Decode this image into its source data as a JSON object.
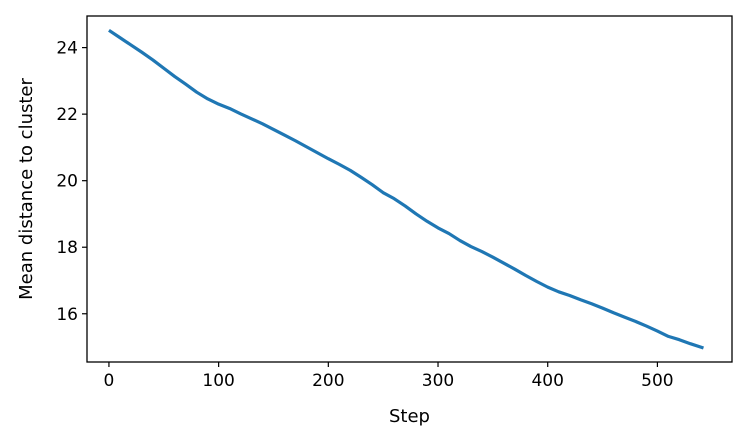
{
  "chart_data": {
    "type": "line",
    "title": "",
    "xlabel": "Step",
    "ylabel": "Mean distance to cluster",
    "xlim": [
      -20,
      568
    ],
    "ylim": [
      14.55,
      24.95
    ],
    "grid": false,
    "legend": "none",
    "x_ticks": [
      0,
      100,
      200,
      300,
      400,
      500
    ],
    "y_ticks": [
      16,
      18,
      20,
      22,
      24
    ],
    "series": [
      {
        "color": "#1f77b4",
        "x": [
          0,
          10,
          20,
          30,
          40,
          50,
          60,
          70,
          80,
          90,
          100,
          110,
          120,
          130,
          140,
          150,
          160,
          170,
          180,
          190,
          200,
          210,
          220,
          230,
          240,
          250,
          260,
          270,
          280,
          290,
          300,
          310,
          320,
          330,
          340,
          350,
          360,
          370,
          380,
          390,
          400,
          410,
          420,
          430,
          440,
          450,
          460,
          470,
          480,
          490,
          500,
          510,
          520,
          530,
          542
        ],
        "y": [
          24.52,
          24.3,
          24.08,
          23.86,
          23.63,
          23.38,
          23.13,
          22.9,
          22.66,
          22.46,
          22.3,
          22.17,
          22.01,
          21.86,
          21.71,
          21.54,
          21.37,
          21.2,
          21.02,
          20.84,
          20.66,
          20.49,
          20.31,
          20.1,
          19.88,
          19.64,
          19.46,
          19.24,
          19.0,
          18.78,
          18.58,
          18.41,
          18.2,
          18.02,
          17.87,
          17.7,
          17.52,
          17.34,
          17.15,
          16.97,
          16.8,
          16.66,
          16.55,
          16.42,
          16.3,
          16.17,
          16.03,
          15.9,
          15.77,
          15.63,
          15.48,
          15.32,
          15.22,
          15.1,
          14.97
        ]
      }
    ]
  }
}
